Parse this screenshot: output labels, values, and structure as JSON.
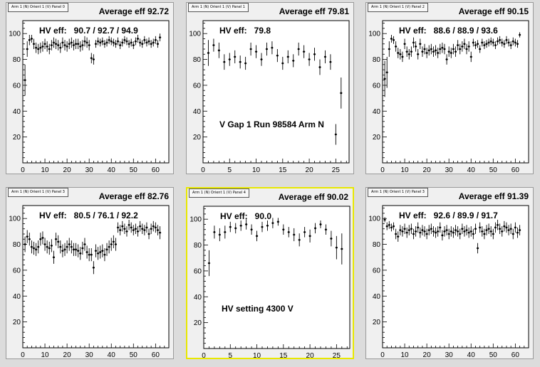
{
  "panels": [
    {
      "tag": "Arm 1 (N) Orient 1 (V) Panel 0",
      "average": "Average eff 92.72",
      "hv": "HV eff:   90.7 / 92.7 / 94.9",
      "note": "",
      "active": false
    },
    {
      "tag": "Arm 1 (N) Orient 1 (V) Panel 1",
      "average": "Average eff 79.81",
      "hv": "HV eff:   79.8",
      "note": "V Gap 1 Run 98584 Arm N",
      "active": false
    },
    {
      "tag": "Arm 1 (N) Orient 1 (V) Panel 2",
      "average": "Average eff 90.15",
      "hv": "HV eff:   88.6 / 88.9 / 93.6",
      "note": "",
      "active": false
    },
    {
      "tag": "Arm 1 (N) Orient 1 (V) Panel 3",
      "average": "Average eff 82.76",
      "hv": "HV eff:   80.5 / 76.1 / 92.2",
      "note": "",
      "active": false
    },
    {
      "tag": "Arm 1 (N) Orient 1 (V) Panel 4",
      "average": "Average eff 90.02",
      "hv": "HV eff:   90.0",
      "note": "HV setting 4300 V",
      "active": true
    },
    {
      "tag": "Arm 1 (N) Orient 1 (V) Panel 3",
      "average": "Average eff 91.39",
      "hv": "HV eff:   92.6 / 89.9 / 91.7",
      "note": "",
      "active": false
    }
  ],
  "chart_data": [
    {
      "type": "scatter",
      "xlim": [
        0,
        66
      ],
      "ylim": [
        0,
        110
      ],
      "xticks": [
        "0",
        "10",
        "20",
        "30",
        "40",
        "50",
        "60"
      ],
      "yticks": [
        "20",
        "40",
        "60",
        "80",
        "100"
      ],
      "x": [
        1,
        2,
        3,
        4,
        5,
        6,
        7,
        8,
        9,
        10,
        11,
        12,
        13,
        14,
        15,
        16,
        17,
        18,
        19,
        20,
        21,
        22,
        23,
        24,
        25,
        26,
        27,
        28,
        29,
        30,
        31,
        32,
        33,
        34,
        35,
        36,
        37,
        38,
        39,
        40,
        41,
        42,
        43,
        44,
        45,
        46,
        47,
        48,
        49,
        50,
        51,
        52,
        53,
        54,
        55,
        56,
        57,
        58,
        59,
        60,
        61,
        62
      ],
      "y": [
        64,
        88,
        95,
        96,
        92,
        89,
        88,
        89,
        90,
        92,
        90,
        88,
        91,
        93,
        92,
        91,
        89,
        93,
        91,
        90,
        92,
        93,
        91,
        92,
        92,
        90,
        91,
        94,
        93,
        91,
        81,
        80,
        92,
        94,
        93,
        94,
        92,
        93,
        95,
        94,
        93,
        92,
        94,
        91,
        93,
        95,
        94,
        92,
        93,
        91,
        94,
        96,
        93,
        92,
        95,
        93,
        94,
        92,
        93,
        95,
        92,
        97
      ],
      "err": [
        12,
        6,
        4,
        3,
        4,
        4,
        4,
        4,
        4,
        4,
        4,
        4,
        4,
        4,
        4,
        4,
        4,
        4,
        4,
        4,
        4,
        4,
        4,
        4,
        4,
        4,
        4,
        4,
        4,
        4,
        4,
        4,
        3,
        3,
        3,
        3,
        3,
        3,
        3,
        3,
        3,
        3,
        3,
        3,
        3,
        3,
        3,
        3,
        3,
        3,
        3,
        3,
        3,
        3,
        3,
        3,
        3,
        3,
        3,
        3,
        3,
        3
      ]
    },
    {
      "type": "scatter",
      "xlim": [
        0,
        27.5
      ],
      "ylim": [
        0,
        110
      ],
      "xticks": [
        "0",
        "5",
        "10",
        "15",
        "20",
        "25"
      ],
      "yticks": [
        "20",
        "40",
        "60",
        "80",
        "100"
      ],
      "x": [
        1,
        2,
        3,
        4,
        5,
        6,
        7,
        8,
        9,
        10,
        11,
        12,
        13,
        14,
        15,
        16,
        17,
        18,
        19,
        20,
        21,
        22,
        23,
        24,
        25,
        26
      ],
      "y": [
        85,
        91,
        87,
        78,
        80,
        82,
        78,
        77,
        88,
        86,
        80,
        88,
        89,
        83,
        77,
        82,
        79,
        88,
        86,
        80,
        84,
        74,
        82,
        78,
        22,
        54
      ],
      "err": [
        10,
        5,
        6,
        6,
        5,
        5,
        5,
        5,
        5,
        5,
        5,
        5,
        5,
        5,
        5,
        5,
        5,
        5,
        5,
        5,
        5,
        6,
        5,
        6,
        8,
        12
      ]
    },
    {
      "type": "scatter",
      "xlim": [
        0,
        66
      ],
      "ylim": [
        0,
        110
      ],
      "xticks": [
        "0",
        "10",
        "20",
        "30",
        "40",
        "50",
        "60"
      ],
      "yticks": [
        "20",
        "40",
        "60",
        "80",
        "100"
      ],
      "x": [
        1,
        2,
        3,
        4,
        5,
        6,
        7,
        8,
        9,
        10,
        11,
        12,
        13,
        14,
        15,
        16,
        17,
        18,
        19,
        20,
        21,
        22,
        23,
        24,
        25,
        26,
        27,
        28,
        29,
        30,
        31,
        32,
        33,
        34,
        35,
        36,
        37,
        38,
        39,
        40,
        41,
        42,
        43,
        44,
        45,
        46,
        47,
        48,
        49,
        50,
        51,
        52,
        53,
        54,
        55,
        56,
        57,
        58,
        59,
        60,
        61,
        62
      ],
      "y": [
        65,
        70,
        88,
        96,
        95,
        90,
        85,
        84,
        82,
        92,
        86,
        84,
        86,
        93,
        90,
        84,
        92,
        86,
        88,
        85,
        87,
        88,
        86,
        87,
        85,
        88,
        89,
        88,
        80,
        86,
        85,
        88,
        86,
        91,
        88,
        90,
        92,
        88,
        90,
        82,
        93,
        91,
        92,
        88,
        93,
        91,
        92,
        93,
        94,
        93,
        91,
        94,
        95,
        93,
        92,
        95,
        93,
        91,
        94,
        93,
        92,
        99
      ],
      "err": [
        14,
        12,
        6,
        3,
        3,
        4,
        4,
        4,
        4,
        4,
        4,
        4,
        4,
        4,
        4,
        4,
        4,
        4,
        4,
        4,
        4,
        4,
        4,
        4,
        4,
        4,
        4,
        4,
        4,
        4,
        4,
        4,
        4,
        4,
        4,
        4,
        4,
        4,
        4,
        4,
        3,
        3,
        3,
        3,
        3,
        3,
        3,
        3,
        3,
        3,
        3,
        3,
        3,
        3,
        3,
        3,
        3,
        3,
        3,
        3,
        3,
        2
      ]
    },
    {
      "type": "scatter",
      "xlim": [
        0,
        66
      ],
      "ylim": [
        0,
        110
      ],
      "xticks": [
        "0",
        "10",
        "20",
        "30",
        "40",
        "50",
        "60"
      ],
      "yticks": [
        "20",
        "40",
        "60",
        "80",
        "100"
      ],
      "x": [
        1,
        2,
        3,
        4,
        5,
        6,
        7,
        8,
        9,
        10,
        11,
        12,
        13,
        14,
        15,
        16,
        17,
        18,
        19,
        20,
        21,
        22,
        23,
        24,
        25,
        26,
        27,
        28,
        29,
        30,
        31,
        32,
        33,
        34,
        35,
        36,
        37,
        38,
        39,
        40,
        41,
        42,
        43,
        44,
        45,
        46,
        47,
        48,
        49,
        50,
        51,
        52,
        53,
        54,
        55,
        56,
        57,
        58,
        59,
        60,
        61,
        62
      ],
      "y": [
        80,
        86,
        84,
        78,
        77,
        76,
        78,
        84,
        85,
        80,
        78,
        77,
        79,
        70,
        84,
        82,
        78,
        75,
        76,
        78,
        80,
        78,
        76,
        76,
        75,
        73,
        77,
        80,
        74,
        72,
        72,
        62,
        75,
        73,
        74,
        75,
        72,
        76,
        78,
        80,
        82,
        80,
        93,
        91,
        94,
        92,
        90,
        95,
        93,
        91,
        92,
        90,
        94,
        92,
        91,
        93,
        88,
        92,
        94,
        93,
        91,
        89
      ],
      "err": [
        6,
        5,
        5,
        5,
        5,
        5,
        5,
        5,
        5,
        5,
        5,
        5,
        5,
        5,
        5,
        5,
        5,
        5,
        5,
        5,
        5,
        5,
        5,
        5,
        5,
        5,
        5,
        5,
        5,
        5,
        5,
        5,
        5,
        5,
        5,
        5,
        5,
        5,
        5,
        5,
        5,
        5,
        4,
        4,
        4,
        4,
        4,
        4,
        4,
        4,
        4,
        4,
        4,
        4,
        4,
        4,
        4,
        4,
        4,
        4,
        4,
        5
      ]
    },
    {
      "type": "scatter",
      "xlim": [
        0,
        27.5
      ],
      "ylim": [
        0,
        110
      ],
      "xticks": [
        "0",
        "5",
        "10",
        "15",
        "20",
        "25"
      ],
      "yticks": [
        "20",
        "40",
        "60",
        "80",
        "100"
      ],
      "x": [
        1,
        2,
        3,
        4,
        5,
        6,
        7,
        8,
        9,
        10,
        11,
        12,
        13,
        14,
        15,
        16,
        17,
        18,
        19,
        20,
        21,
        22,
        23,
        24,
        25,
        26
      ],
      "y": [
        66,
        90,
        88,
        90,
        94,
        93,
        95,
        96,
        92,
        87,
        94,
        95,
        97,
        98,
        92,
        90,
        88,
        84,
        90,
        87,
        93,
        96,
        92,
        85,
        78,
        77
      ],
      "err": [
        10,
        5,
        5,
        5,
        4,
        4,
        4,
        4,
        4,
        4,
        4,
        4,
        4,
        3,
        4,
        4,
        5,
        5,
        4,
        5,
        4,
        3,
        4,
        6,
        9,
        12
      ]
    },
    {
      "type": "scatter",
      "xlim": [
        0,
        66
      ],
      "ylim": [
        0,
        110
      ],
      "xticks": [
        "0",
        "10",
        "20",
        "30",
        "40",
        "50",
        "60"
      ],
      "yticks": [
        "20",
        "40",
        "60",
        "80",
        "100"
      ],
      "x": [
        1,
        2,
        3,
        4,
        5,
        6,
        7,
        8,
        9,
        10,
        11,
        12,
        13,
        14,
        15,
        16,
        17,
        18,
        19,
        20,
        21,
        22,
        23,
        24,
        25,
        26,
        27,
        28,
        29,
        30,
        31,
        32,
        33,
        34,
        35,
        36,
        37,
        38,
        39,
        40,
        41,
        42,
        43,
        44,
        45,
        46,
        47,
        48,
        49,
        50,
        51,
        52,
        53,
        54,
        55,
        56,
        57,
        58,
        59,
        60,
        61,
        62
      ],
      "y": [
        99,
        94,
        95,
        93,
        94,
        88,
        86,
        91,
        90,
        92,
        89,
        91,
        92,
        88,
        90,
        93,
        89,
        91,
        90,
        88,
        91,
        92,
        90,
        89,
        90,
        93,
        87,
        90,
        91,
        88,
        90,
        89,
        91,
        90,
        88,
        92,
        90,
        91,
        89,
        90,
        88,
        92,
        77,
        93,
        90,
        88,
        91,
        92,
        90,
        88,
        93,
        95,
        92,
        90,
        94,
        93,
        91,
        92,
        88,
        93,
        89,
        91
      ],
      "err": [
        2,
        3,
        3,
        3,
        3,
        4,
        4,
        4,
        4,
        4,
        4,
        4,
        4,
        4,
        4,
        4,
        4,
        4,
        4,
        4,
        4,
        4,
        4,
        4,
        4,
        4,
        4,
        4,
        4,
        4,
        4,
        4,
        4,
        4,
        4,
        4,
        4,
        4,
        4,
        4,
        4,
        4,
        4,
        4,
        4,
        4,
        4,
        4,
        4,
        4,
        4,
        4,
        4,
        4,
        4,
        4,
        4,
        4,
        4,
        4,
        4,
        4
      ]
    }
  ]
}
